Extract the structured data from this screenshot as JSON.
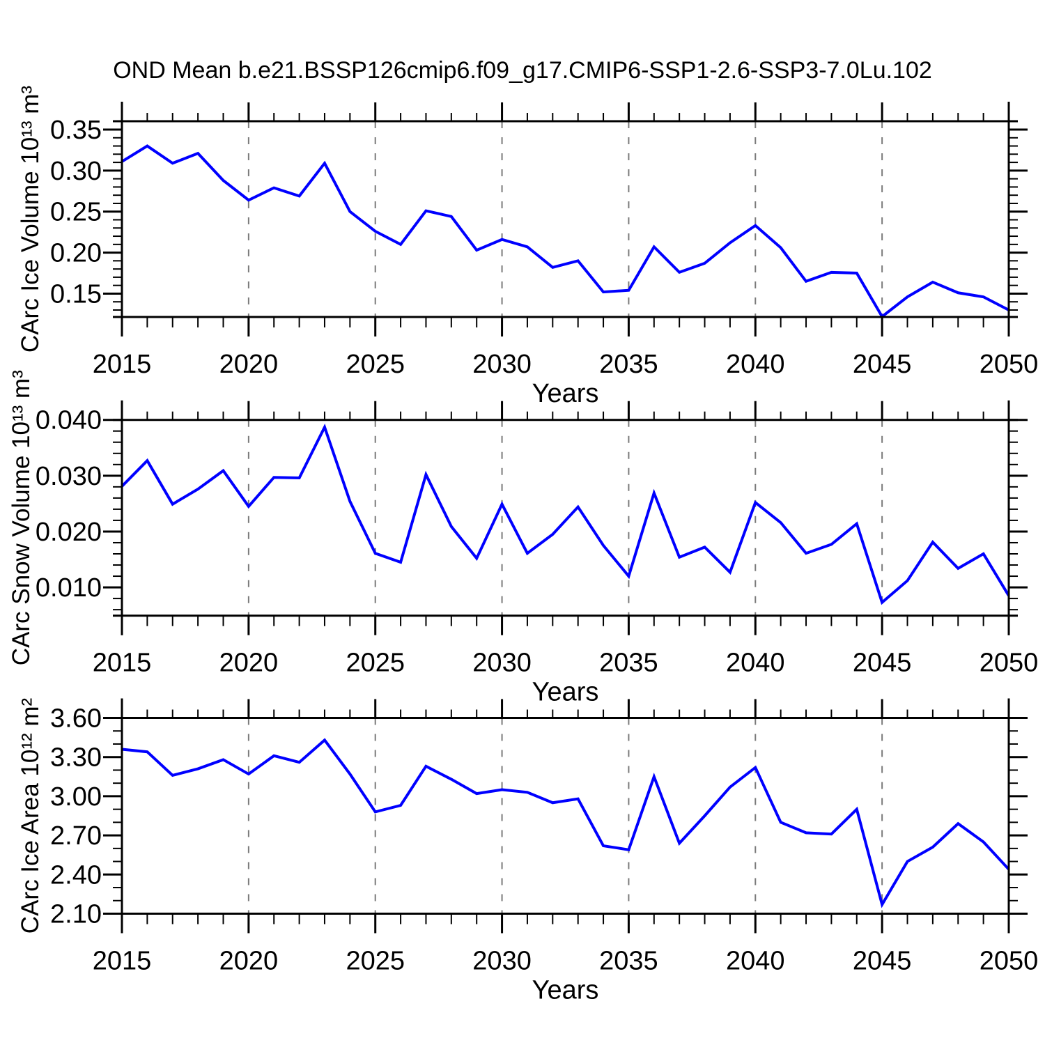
{
  "title": "OND Mean b.e21.BSSP126cmip6.f09_g17.CMIP6-SSP1-2.6-SSP3-7.0Lu.102",
  "colors": {
    "line": "#0000ff",
    "grid": "#7a7a7a",
    "axis": "#000000"
  },
  "chart_data": [
    {
      "type": "line",
      "title": "",
      "ylabel": "CArc Ice Volume 10¹³ m³",
      "xlabel": "Years",
      "years": [
        2015,
        2016,
        2017,
        2018,
        2019,
        2020,
        2021,
        2022,
        2023,
        2024,
        2025,
        2026,
        2027,
        2028,
        2029,
        2030,
        2031,
        2032,
        2033,
        2034,
        2035,
        2036,
        2037,
        2038,
        2039,
        2040,
        2041,
        2042,
        2043,
        2044,
        2045,
        2046,
        2047,
        2048,
        2049,
        2050
      ],
      "values": [
        0.311,
        0.33,
        0.309,
        0.321,
        0.288,
        0.264,
        0.279,
        0.269,
        0.309,
        0.25,
        0.226,
        0.21,
        0.251,
        0.244,
        0.203,
        0.216,
        0.207,
        0.182,
        0.19,
        0.152,
        0.154,
        0.207,
        0.176,
        0.187,
        0.212,
        0.233,
        0.206,
        0.165,
        0.176,
        0.175,
        0.122,
        0.146,
        0.164,
        0.151,
        0.146,
        0.13
      ],
      "ylim": [
        0.1215,
        0.3602
      ],
      "ytick_values": [
        0.15,
        0.2,
        0.25,
        0.3,
        0.35
      ],
      "ytick_labels": [
        "0.15",
        "0.20",
        "0.25",
        "0.30",
        "0.35"
      ],
      "y_minor_step": 0.01,
      "xlim": [
        2015,
        2050
      ],
      "xtick_values": [
        2015,
        2020,
        2025,
        2030,
        2035,
        2040,
        2045,
        2050
      ],
      "xtick_labels": [
        "2015",
        "2020",
        "2025",
        "2030",
        "2035",
        "2040",
        "2045",
        "2050"
      ],
      "x_minor_step": 1,
      "grid_x": [
        2020,
        2025,
        2030,
        2035,
        2040,
        2045
      ],
      "grid_on": "vertical-dashed-only"
    },
    {
      "type": "line",
      "title": "",
      "ylabel": "CArc Snow Volume 10¹³ m³",
      "xlabel": "Years",
      "years": [
        2015,
        2016,
        2017,
        2018,
        2019,
        2020,
        2021,
        2022,
        2023,
        2024,
        2025,
        2026,
        2027,
        2028,
        2029,
        2030,
        2031,
        2032,
        2033,
        2034,
        2035,
        2036,
        2037,
        2038,
        2039,
        2040,
        2041,
        2042,
        2043,
        2044,
        2045,
        2046,
        2047,
        2048,
        2049,
        2050
      ],
      "values": [
        0.0281,
        0.0327,
        0.0249,
        0.0276,
        0.0309,
        0.0245,
        0.0297,
        0.0296,
        0.0387,
        0.0254,
        0.0161,
        0.0145,
        0.0302,
        0.0209,
        0.0152,
        0.0249,
        0.0161,
        0.0195,
        0.0244,
        0.0175,
        0.012,
        0.0269,
        0.0154,
        0.0172,
        0.0127,
        0.0252,
        0.0216,
        0.0161,
        0.0177,
        0.0214,
        0.0073,
        0.0112,
        0.0181,
        0.0134,
        0.016,
        0.0085
      ],
      "ylim": [
        0.00493,
        0.04
      ],
      "ytick_values": [
        0.01,
        0.02,
        0.03,
        0.04
      ],
      "ytick_labels": [
        "0.010",
        "0.020",
        "0.030",
        "0.040"
      ],
      "y_minor_step": 0.002,
      "xlim": [
        2015,
        2050
      ],
      "xtick_values": [
        2015,
        2020,
        2025,
        2030,
        2035,
        2040,
        2045,
        2050
      ],
      "xtick_labels": [
        "2015",
        "2020",
        "2025",
        "2030",
        "2035",
        "2040",
        "2045",
        "2050"
      ],
      "x_minor_step": 1,
      "grid_x": [
        2020,
        2025,
        2030,
        2035,
        2040,
        2045
      ],
      "grid_on": "vertical-dashed-only"
    },
    {
      "type": "line",
      "title": "",
      "ylabel": "CArc Ice Area 10¹² m²",
      "xlabel": "Years",
      "years": [
        2015,
        2016,
        2017,
        2018,
        2019,
        2020,
        2021,
        2022,
        2023,
        2024,
        2025,
        2026,
        2027,
        2028,
        2029,
        2030,
        2031,
        2032,
        2033,
        2034,
        2035,
        2036,
        2037,
        2038,
        2039,
        2040,
        2041,
        2042,
        2043,
        2044,
        2045,
        2046,
        2047,
        2048,
        2049,
        2050
      ],
      "values": [
        3.36,
        3.34,
        3.16,
        3.21,
        3.28,
        3.17,
        3.31,
        3.26,
        3.43,
        3.17,
        2.88,
        2.93,
        3.23,
        3.13,
        3.02,
        3.05,
        3.03,
        2.95,
        2.98,
        2.62,
        2.59,
        3.15,
        2.64,
        2.85,
        3.07,
        3.22,
        2.8,
        2.72,
        2.71,
        2.9,
        2.17,
        2.5,
        2.61,
        2.79,
        2.65,
        2.44
      ],
      "ylim": [
        2.1,
        3.6
      ],
      "ytick_values": [
        2.1,
        2.4,
        2.7,
        3.0,
        3.3,
        3.6
      ],
      "ytick_labels": [
        "2.10",
        "2.40",
        "2.70",
        "3.00",
        "3.30",
        "3.60"
      ],
      "y_minor_step": 0.1,
      "xlim": [
        2015,
        2050
      ],
      "xtick_values": [
        2015,
        2020,
        2025,
        2030,
        2035,
        2040,
        2045,
        2050
      ],
      "xtick_labels": [
        "2015",
        "2020",
        "2025",
        "2030",
        "2035",
        "2040",
        "2045",
        "2050"
      ],
      "x_minor_step": 1,
      "grid_x": [
        2020,
        2025,
        2030,
        2035,
        2040,
        2045
      ],
      "grid_on": "vertical-dashed-only"
    }
  ]
}
